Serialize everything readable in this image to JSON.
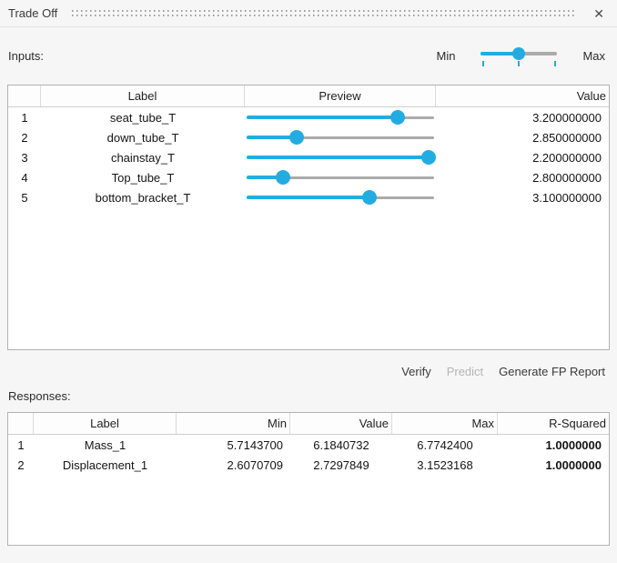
{
  "title": "Trade Off",
  "close_icon": "✕",
  "colors": {
    "accent": "#23ACE2",
    "track_gray": "#ABABAB"
  },
  "inputs": {
    "section_label": "Inputs:",
    "range_slider": {
      "min_label": "Min",
      "max_label": "Max",
      "position_pct": 49
    },
    "table": {
      "columns": [
        "",
        "Label",
        "Preview",
        "Value"
      ],
      "rows": [
        {
          "num": "1",
          "label": "seat_tube_T",
          "slider_pct": 80,
          "value": "3.200000000"
        },
        {
          "num": "2",
          "label": "down_tube_T",
          "slider_pct": 27,
          "value": "2.850000000"
        },
        {
          "num": "3",
          "label": "chainstay_T",
          "slider_pct": 96,
          "value": "2.200000000"
        },
        {
          "num": "4",
          "label": "Top_tube_T",
          "slider_pct": 20,
          "value": "2.800000000"
        },
        {
          "num": "5",
          "label": "bottom_bracket_T",
          "slider_pct": 65,
          "value": "3.100000000"
        }
      ]
    }
  },
  "actions": [
    {
      "label": "Verify",
      "enabled": true
    },
    {
      "label": "Predict",
      "enabled": false
    },
    {
      "label": "Generate FP Report",
      "enabled": true
    }
  ],
  "responses": {
    "section_label": "Responses:",
    "table": {
      "columns": [
        "",
        "Label",
        "Min",
        "Value",
        "Max",
        "R-Squared"
      ],
      "rows": [
        {
          "num": "1",
          "label": "Mass_1",
          "min": "5.7143700",
          "value": "6.1840732",
          "max": "6.7742400",
          "r_squared": "1.0000000"
        },
        {
          "num": "2",
          "label": "Displacement_1",
          "min": "2.6070709",
          "value": "2.7297849",
          "max": "3.1523168",
          "r_squared": "1.0000000"
        }
      ]
    }
  }
}
